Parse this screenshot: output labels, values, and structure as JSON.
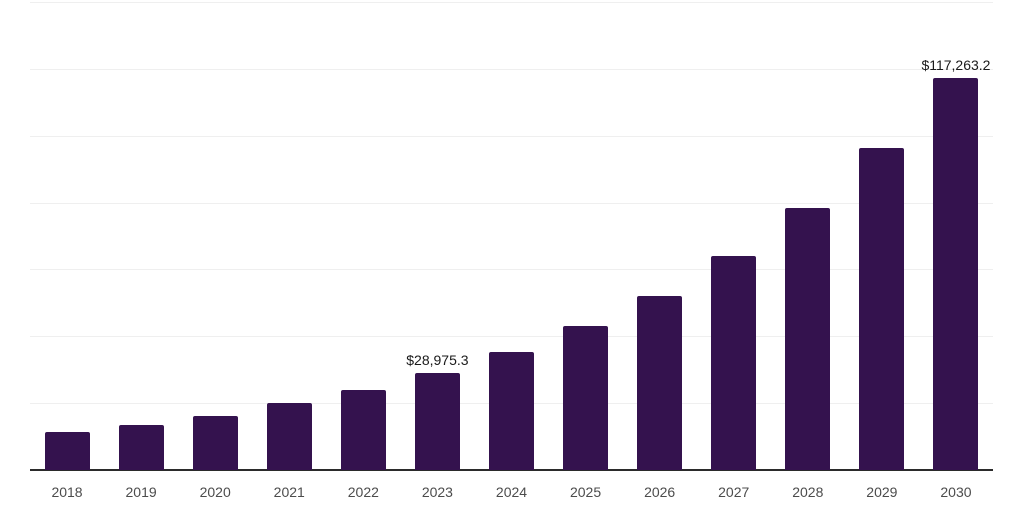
{
  "chart_data": {
    "type": "bar",
    "title": "",
    "xlabel": "",
    "ylabel": "",
    "categories": [
      "2018",
      "2019",
      "2020",
      "2021",
      "2022",
      "2023",
      "2024",
      "2025",
      "2026",
      "2027",
      "2028",
      "2029",
      "2030"
    ],
    "values": [
      11400,
      13500,
      16100,
      20000,
      23900,
      28975.3,
      35200,
      43000,
      52100,
      64100,
      78400,
      96400,
      117263.2
    ],
    "data_labels": [
      {
        "category": "2023",
        "text": "$28,975.3"
      },
      {
        "category": "2030",
        "text": "$117,263.2"
      }
    ],
    "ylim": [
      0,
      140000
    ],
    "gridline_step": 20000,
    "grid": "horizontal-only",
    "legend_position": "none",
    "y_axis_tick_labels_visible": false,
    "colors": {
      "bar": "#34124E",
      "axis_line": "#2b2b2b",
      "gridline": "#efefef",
      "tick_label": "#4c4c4c",
      "data_label": "#1a1a1a",
      "background": "#ffffff"
    }
  }
}
